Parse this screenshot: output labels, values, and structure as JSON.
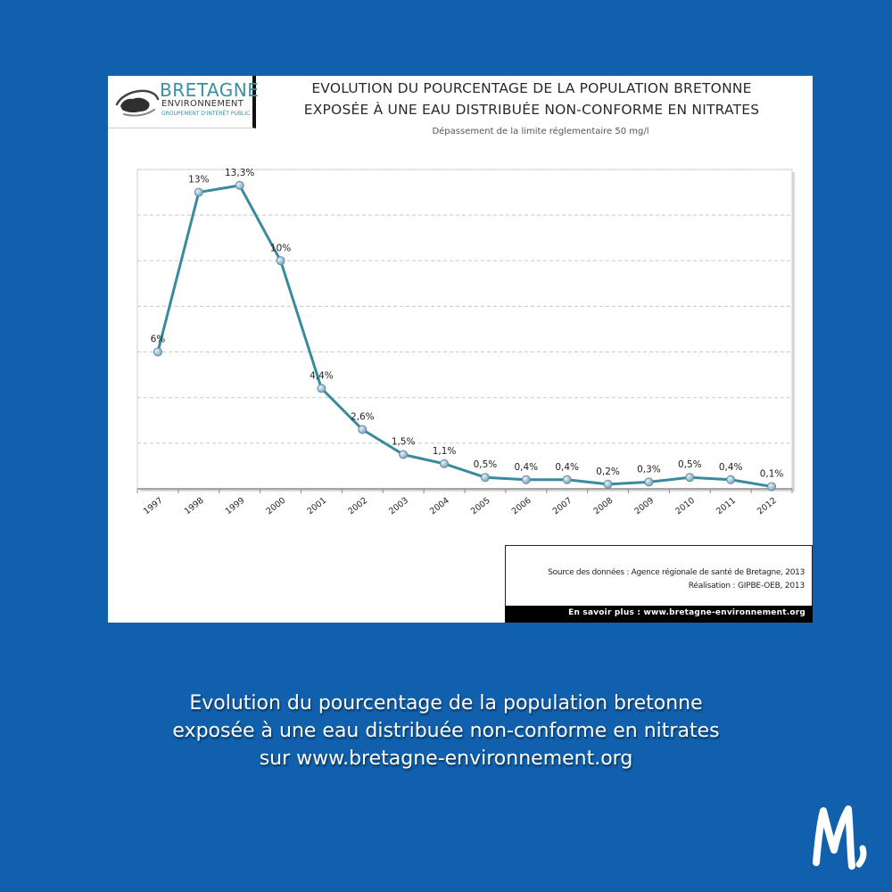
{
  "logo": {
    "name": "BRETAGNE",
    "subtitle": "ENVIRONNEMENT",
    "tagline": "GROUPEMENT D'INTÉRÊT PUBLIC"
  },
  "chart_data": {
    "type": "line",
    "title_line1": "EVOLUTION DU POURCENTAGE DE LA POPULATION BRETONNE",
    "title_line2": "EXPOSÉE À UNE EAU DISTRIBUÉE NON-CONFORME EN NITRATES",
    "subtitle": "Dépassement de la limite réglementaire 50 mg/l",
    "xlabel": "",
    "ylabel": "",
    "categories": [
      "1997",
      "1998",
      "1999",
      "2000",
      "2001",
      "2002",
      "2003",
      "2004",
      "2005",
      "2006",
      "2007",
      "2008",
      "2009",
      "2010",
      "2011",
      "2012"
    ],
    "values": [
      6,
      13,
      13.3,
      10,
      4.4,
      2.6,
      1.5,
      1.1,
      0.5,
      0.4,
      0.4,
      0.2,
      0.3,
      0.5,
      0.4,
      0.1
    ],
    "data_labels": [
      "6%",
      "13%",
      "13,3%",
      "10%",
      "4,4%",
      "2,6%",
      "1,5%",
      "1,1%",
      "0,5%",
      "0,4%",
      "0,4%",
      "0,2%",
      "0,3%",
      "0,5%",
      "0,4%",
      "0,1%"
    ],
    "ylim": [
      0,
      14
    ],
    "y_grid_step": 2,
    "grid": true,
    "y_tick_labels_shown": false,
    "legend": "none",
    "line_color": "#3a8a9e",
    "marker_color": "#a9c6d8"
  },
  "source": {
    "line1": "Source des données : Agence régionale de santé de Bretagne, 2013",
    "line2": "Réalisation : GIPBE-OEB, 2013",
    "more": "En savoir plus : www.bretagne-environnement.org"
  },
  "caption": {
    "line1": "Evolution du pourcentage de la population bretonne",
    "line2": "exposée à une eau distribuée non-conforme en nitrates",
    "line3": "sur www.bretagne-environnement.org"
  },
  "colors": {
    "background": "#1160ad",
    "card": "#ffffff",
    "accent": "#3a8fa3"
  }
}
